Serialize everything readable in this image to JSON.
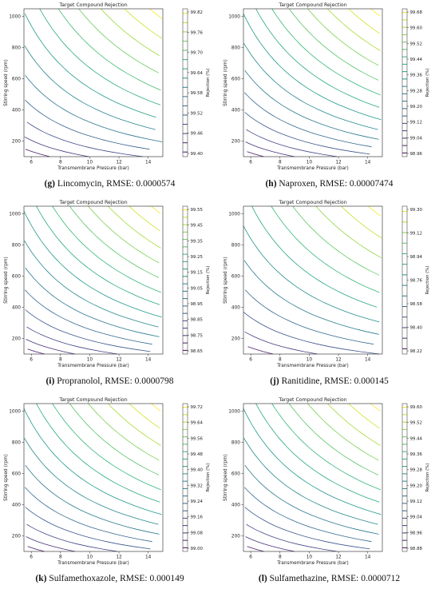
{
  "chart_data": [
    {
      "type": "contour",
      "title": "Target Compound Rejection",
      "xlabel": "Transmembrane Pressure (bar)",
      "ylabel": "Stirring speed (rpm)",
      "colorbar_label": "Rejection (%)",
      "xlim": [
        5.5,
        15
      ],
      "ylim": [
        100,
        1050
      ],
      "x_ticks": [
        6,
        8,
        10,
        12,
        14
      ],
      "y_ticks": [
        200,
        400,
        600,
        800,
        1000
      ],
      "colorbar_ticks": [
        "99.82",
        "99.76",
        "99.70",
        "99.64",
        "99.58",
        "99.52",
        "99.46",
        "99.40"
      ],
      "colorbar_range": [
        99.4,
        99.82
      ],
      "caption_letter": "(g)",
      "caption_text": " Lincomycin, RMSE: 0.0000574"
    },
    {
      "type": "contour",
      "title": "Target Compound Rejection",
      "xlabel": "Transmembrane Pressure (bar)",
      "ylabel": "Stirring speed (rpm)",
      "colorbar_label": "Rejection (%)",
      "xlim": [
        5.5,
        15
      ],
      "ylim": [
        100,
        1050
      ],
      "x_ticks": [
        6,
        8,
        10,
        12,
        14
      ],
      "y_ticks": [
        200,
        400,
        600,
        800,
        1000
      ],
      "colorbar_ticks": [
        "99.68",
        "99.60",
        "99.52",
        "99.44",
        "99.36",
        "99.28",
        "99.20",
        "99.12",
        "99.04",
        "98.96"
      ],
      "colorbar_range": [
        98.96,
        99.68
      ],
      "caption_letter": "(h)",
      "caption_text": " Naproxen, RMSE: 0.00007474"
    },
    {
      "type": "contour",
      "title": "Target Compound Rejection",
      "xlabel": "Transmembrane Pressure (bar)",
      "ylabel": "Stirring speed (rpm)",
      "colorbar_label": "Rejection (%)",
      "xlim": [
        5.5,
        15
      ],
      "ylim": [
        100,
        1050
      ],
      "x_ticks": [
        6,
        8,
        10,
        12,
        14
      ],
      "y_ticks": [
        200,
        400,
        600,
        800,
        1000
      ],
      "colorbar_ticks": [
        "99.55",
        "99.45",
        "99.35",
        "99.25",
        "99.15",
        "99.05",
        "98.95",
        "98.85",
        "98.75",
        "98.65"
      ],
      "colorbar_range": [
        98.65,
        99.55
      ],
      "caption_letter": "(i)",
      "caption_text": " Propranolol, RMSE: 0.0000798"
    },
    {
      "type": "contour",
      "title": "Target Compound Rejection",
      "xlabel": "Transmembrane Pressure (bar)",
      "ylabel": "Stirring speed (rpm)",
      "colorbar_label": "Rejection (%)",
      "xlim": [
        5.5,
        15
      ],
      "ylim": [
        100,
        1050
      ],
      "x_ticks": [
        6,
        8,
        10,
        12,
        14
      ],
      "y_ticks": [
        200,
        400,
        600,
        800,
        1000
      ],
      "colorbar_ticks": [
        "99.30",
        "99.12",
        "98.94",
        "98.76",
        "98.58",
        "98.40",
        "98.22"
      ],
      "colorbar_range": [
        98.22,
        99.3
      ],
      "caption_letter": "(j)",
      "caption_text": " Ranitidine, RMSE: 0.000145"
    },
    {
      "type": "contour",
      "title": "Target Compound Rejection",
      "xlabel": "Transmembrane Pressure (bar)",
      "ylabel": "Stirring speed (rpm)",
      "colorbar_label": "Rejection (%)",
      "xlim": [
        5.5,
        15
      ],
      "ylim": [
        100,
        1050
      ],
      "x_ticks": [
        6,
        8,
        10,
        12,
        14
      ],
      "y_ticks": [
        200,
        400,
        600,
        800,
        1000
      ],
      "colorbar_ticks": [
        "99.72",
        "99.64",
        "99.56",
        "99.48",
        "99.40",
        "99.32",
        "99.24",
        "99.16",
        "99.08",
        "99.00"
      ],
      "colorbar_range": [
        99.0,
        99.72
      ],
      "caption_letter": "(k)",
      "caption_text": " Sulfamethoxazole, RMSE: 0.000149"
    },
    {
      "type": "contour",
      "title": "Target Compound Rejection",
      "xlabel": "Transmembrane Pressure (bar)",
      "ylabel": "Stirring speed (rpm)",
      "colorbar_label": "Rejection (%)",
      "xlim": [
        5.5,
        15
      ],
      "ylim": [
        100,
        1050
      ],
      "x_ticks": [
        6,
        8,
        10,
        12,
        14
      ],
      "y_ticks": [
        200,
        400,
        600,
        800,
        1000
      ],
      "colorbar_ticks": [
        "99.60",
        "99.52",
        "99.44",
        "99.36",
        "99.28",
        "99.20",
        "99.12",
        "99.04",
        "98.96",
        "98.88"
      ],
      "colorbar_range": [
        98.88,
        99.6
      ],
      "caption_letter": "(l)",
      "caption_text": " Sulfamethazine, RMSE: 0.0000712"
    }
  ]
}
